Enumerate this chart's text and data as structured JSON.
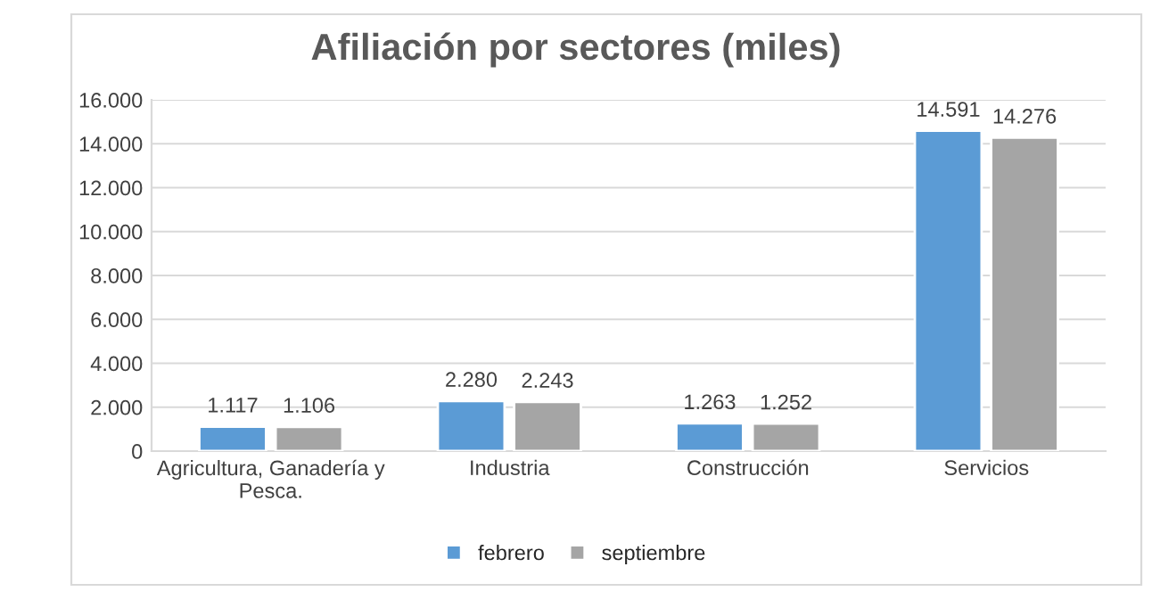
{
  "chart_data": {
    "type": "bar",
    "title": "Afiliación por sectores (miles)",
    "categories": [
      "Agricultura, Ganadería y\nPesca.",
      "Industria",
      "Construcción",
      "Servicios"
    ],
    "series": [
      {
        "name": "febrero",
        "color": "#5b9bd5",
        "values": [
          1117,
          2280,
          1263,
          14591
        ],
        "value_labels": [
          "1.117",
          "2.280",
          "1.263",
          "14.591"
        ]
      },
      {
        "name": "septiembre",
        "color": "#a5a5a5",
        "values": [
          1106,
          2243,
          1252,
          14276
        ],
        "value_labels": [
          "1.106",
          "2.243",
          "1.252",
          "14.276"
        ]
      }
    ],
    "ylim": [
      0,
      16000
    ],
    "yticks": [
      {
        "value": 0,
        "label": "0"
      },
      {
        "value": 2000,
        "label": "2.000"
      },
      {
        "value": 4000,
        "label": "4.000"
      },
      {
        "value": 6000,
        "label": "6.000"
      },
      {
        "value": 8000,
        "label": "8.000"
      },
      {
        "value": 10000,
        "label": "10.000"
      },
      {
        "value": 12000,
        "label": "12.000"
      },
      {
        "value": 14000,
        "label": "14.000"
      },
      {
        "value": 16000,
        "label": "16.000"
      }
    ],
    "grid": "y",
    "legend": "bottom"
  }
}
